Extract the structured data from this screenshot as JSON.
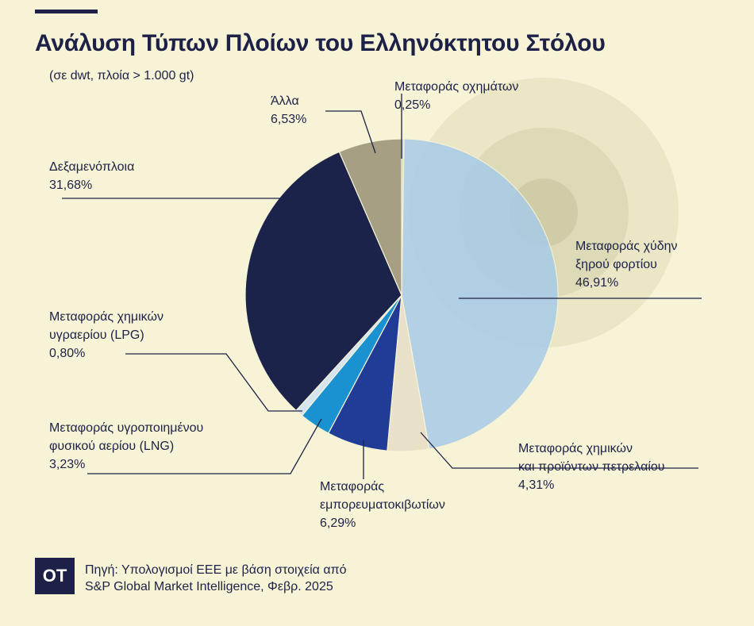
{
  "page": {
    "title": "Ανάλυση Τύπων Πλοίων του Ελληνόκτητου Στόλου",
    "subtitle": "(σε dwt, πλοία > 1.000 gt)"
  },
  "footer": {
    "logo": "OT",
    "source_line1": "Πηγή: Υπολογισμοί ΕΕΕ με βάση στοιχεία από",
    "source_line2": "S&P Global Market Intelligence, Φεβρ. 2025"
  },
  "chart_data": {
    "type": "pie",
    "title": "Ανάλυση Τύπων Πλοίων του Ελληνόκτητου Στόλου",
    "subtitle": "(σε dwt, πλοία > 1.000 gt)",
    "unit": "%",
    "slices": [
      {
        "name": "Μεταφοράς οχημάτων",
        "lines": [
          "Μεταφοράς οχημάτων"
        ],
        "value": 0.25,
        "label": "0,25%",
        "color": "#c9d9e2"
      },
      {
        "name": "Μεταφοράς χύδην ξηρού φορτίου",
        "lines": [
          "Μεταφοράς χύδην",
          "ξηρού φορτίου"
        ],
        "value": 46.91,
        "label": "46,91%",
        "color": "#a8cbe8"
      },
      {
        "name": "Μεταφοράς χημικών και προϊόντων πετρελαίου",
        "lines": [
          "Μεταφοράς χημικών",
          "και προϊόντων πετρελαίου"
        ],
        "value": 4.31,
        "label": "4,31%",
        "color": "#e8e1c8"
      },
      {
        "name": "Μεταφοράς εμπορευματοκιβωτίων",
        "lines": [
          "Μεταφοράς",
          "εμπορευματοκιβωτίων"
        ],
        "value": 6.29,
        "label": "6,29%",
        "color": "#213c96"
      },
      {
        "name": "Μεταφοράς υγροποιημένου φυσικού αερίου (LNG)",
        "lines": [
          "Μεταφοράς υγροποιημένου",
          "φυσικού αερίου (LNG)"
        ],
        "value": 3.23,
        "label": "3,23%",
        "color": "#1a92d2"
      },
      {
        "name": "Μεταφοράς χημικών υγραερίου (LPG)",
        "lines": [
          "Μεταφοράς χημικών",
          "υγραερίου (LPG)"
        ],
        "value": 0.8,
        "label": "0,80%",
        "color": "#d5e4ef"
      },
      {
        "name": "Δεξαμενόπλοια",
        "lines": [
          "Δεξαμενόπλοια"
        ],
        "value": 31.68,
        "label": "31,68%",
        "color": "#1c234a"
      },
      {
        "name": "Άλλα",
        "lines": [
          "Άλλα"
        ],
        "value": 6.53,
        "label": "6,53%",
        "color": "#a69f84"
      }
    ]
  }
}
